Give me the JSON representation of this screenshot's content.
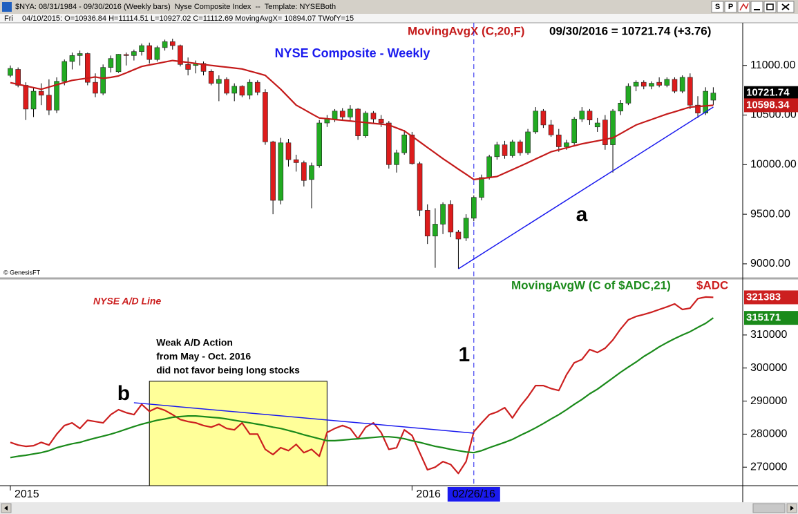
{
  "window": {
    "title": "$NYA: 08/31/1984 - 09/30/2016 (Weekly bars)  Nyse Composite Index  --  Template: NYSEBoth",
    "buttons": [
      "S",
      "P"
    ],
    "day": "Fri",
    "info": "04/10/2015: O=10936.84 H=11114.51 L=10927.02 C=11112.69 MovingAvgX= 10894.07 TWofY=15",
    "credit": "© GenesisFT"
  },
  "chart_data": [
    {
      "type": "candlestick",
      "title": "NYSE Composite - Weekly",
      "quote": "09/30/2016 = 10721.74 (+3.76)",
      "up_color": "#22aa22",
      "down_color": "#dd1c1c",
      "open": [
        10900,
        10960,
        10800,
        10560,
        10740,
        10700,
        10550,
        10840,
        11040,
        11100,
        11120,
        10830,
        10720,
        10980,
        10936.84,
        11110,
        11100,
        11140,
        11200,
        11060,
        11180,
        11240,
        11200,
        11010,
        11000,
        11020,
        10940,
        10820,
        10860,
        10720,
        10790,
        10700,
        10830,
        10730,
        10230,
        9640,
        10220,
        10050,
        10020,
        9850,
        9990,
        10420,
        10460,
        10540,
        10480,
        10560,
        10290,
        10520,
        10460,
        10420,
        10000,
        10120,
        10300,
        10010,
        9540,
        9280,
        9400,
        9600,
        9320,
        9260,
        9460,
        9670,
        9870,
        10080,
        10200,
        10090,
        10230,
        10120,
        10330,
        10540,
        10400,
        10300,
        10180,
        10220,
        10460,
        10540,
        10380,
        10450,
        10200,
        10540,
        10620,
        10790,
        10830,
        10790,
        10830,
        10800,
        10860,
        10740,
        10880,
        10600,
        10520,
        10650
      ],
      "high": [
        11000,
        10980,
        10830,
        10780,
        10820,
        10860,
        10880,
        11060,
        11130,
        11150,
        11130,
        10920,
        11010,
        11100,
        11114.51,
        11130,
        11160,
        11220,
        11230,
        11200,
        11260,
        11270,
        11210,
        11080,
        11050,
        11040,
        10960,
        10900,
        10880,
        10820,
        10800,
        10860,
        10850,
        10760,
        10240,
        10270,
        10260,
        10100,
        10040,
        10020,
        10450,
        10500,
        10560,
        10570,
        10600,
        10570,
        10540,
        10540,
        10500,
        10440,
        10150,
        10350,
        10330,
        10030,
        9600,
        9560,
        9620,
        9640,
        9340,
        9500,
        9690,
        9900,
        10100,
        10230,
        10240,
        10250,
        10250,
        10360,
        10580,
        10560,
        10450,
        10360,
        10250,
        10480,
        10580,
        10560,
        10470,
        10500,
        10560,
        10650,
        10820,
        10850,
        10850,
        10840,
        10880,
        10880,
        10880,
        10900,
        10920,
        10690,
        10780,
        10780
      ],
      "low": [
        10880,
        10780,
        10450,
        10480,
        10600,
        10500,
        10520,
        10800,
        10960,
        11000,
        10800,
        10680,
        10700,
        10930,
        10927.02,
        11000,
        11050,
        11100,
        11020,
        11040,
        11150,
        11160,
        10990,
        10900,
        10920,
        10900,
        10800,
        10640,
        10700,
        10640,
        10680,
        10660,
        10700,
        10200,
        9500,
        9600,
        9980,
        9930,
        9780,
        9560,
        9970,
        10380,
        10430,
        10450,
        10450,
        10250,
        10270,
        10420,
        10380,
        9960,
        9920,
        10100,
        10000,
        9480,
        9200,
        8960,
        9300,
        9270,
        8950,
        9230,
        9430,
        9640,
        9850,
        10050,
        10060,
        10070,
        10090,
        10100,
        10310,
        10370,
        10280,
        10130,
        10150,
        10200,
        10430,
        10400,
        10330,
        10150,
        9920,
        10500,
        10600,
        10740,
        10760,
        10760,
        10780,
        10780,
        10720,
        10720,
        10560,
        10470,
        10500,
        10600
      ],
      "close": [
        10970,
        10800,
        10560,
        10740,
        10700,
        10550,
        10840,
        11040,
        11100,
        11120,
        10830,
        10720,
        10980,
        11070,
        11112.69,
        11100,
        11140,
        11200,
        11060,
        11180,
        11240,
        11200,
        11010,
        10960,
        11020,
        10940,
        10820,
        10860,
        10720,
        10790,
        10700,
        10830,
        10730,
        10230,
        9640,
        10220,
        10050,
        10020,
        9840,
        9990,
        10420,
        10460,
        10540,
        10480,
        10560,
        10290,
        10520,
        10460,
        10420,
        10000,
        10120,
        10300,
        10010,
        9540,
        9280,
        9400,
        9600,
        9320,
        9250,
        9460,
        9670,
        9870,
        10080,
        10200,
        10090,
        10230,
        10120,
        10330,
        10540,
        10400,
        10300,
        10180,
        10220,
        10460,
        10540,
        10450,
        10420,
        10200,
        10540,
        10620,
        10790,
        10830,
        10790,
        10820,
        10800,
        10860,
        10740,
        10880,
        10600,
        10520,
        10740,
        10721.74
      ],
      "series": [
        {
          "name": "MovingAvgX (C,20,F)",
          "color": "#c41a1a",
          "values": [
            10826,
            10810,
            10793,
            10777,
            10760,
            10782,
            10805,
            10828,
            10850,
            10861,
            10872,
            10884,
            10870,
            10880,
            10894.07,
            10925,
            10958,
            10990,
            11005,
            11020,
            11035,
            11050,
            11040,
            11030,
            11020,
            11010,
            11000,
            10991,
            10983,
            10974,
            10965,
            10943,
            10922,
            10900,
            10830,
            10760,
            10680,
            10600,
            10557,
            10513,
            10470,
            10463,
            10455,
            10448,
            10440,
            10432,
            10424,
            10416,
            10408,
            10400,
            10370,
            10340,
            10285,
            10230,
            10173,
            10117,
            10060,
            10008,
            9955,
            9903,
            9850,
            9860,
            9870,
            9880,
            9915,
            9950,
            9985,
            10020,
            10057,
            10093,
            10130,
            10150,
            10170,
            10190,
            10210,
            10225,
            10240,
            10255,
            10270,
            10313,
            10357,
            10400,
            10428,
            10455,
            10483,
            10510,
            10533,
            10557,
            10580,
            10586,
            10592,
            10598.34
          ]
        }
      ],
      "trendline": {
        "label": "a",
        "color": "#1a1aee",
        "points": [
          [
            58,
            8950
          ],
          [
            91,
            10580
          ]
        ]
      },
      "ylim": [
        8860,
        11430
      ],
      "yticks": [
        {
          "value": 9000,
          "label": "9000.00"
        },
        {
          "value": 9500,
          "label": "9500.00"
        },
        {
          "value": 10000,
          "label": "10000.00"
        },
        {
          "value": 10500,
          "label": "10500.00"
        },
        {
          "value": 11000,
          "label": "11000.00"
        }
      ]
    },
    {
      "type": "line",
      "title": "NYSE A/D Line",
      "categories": [
        "2015",
        null,
        null,
        null,
        null,
        null,
        null,
        null,
        null,
        null,
        null,
        null,
        null,
        null,
        null,
        null,
        null,
        null,
        null,
        null,
        null,
        null,
        null,
        null,
        null,
        null,
        null,
        null,
        null,
        null,
        null,
        null,
        null,
        null,
        null,
        null,
        null,
        null,
        null,
        null,
        null,
        null,
        null,
        null,
        null,
        null,
        null,
        null,
        null,
        null,
        null,
        null,
        "2016",
        null,
        null,
        null,
        null,
        null,
        null,
        null,
        "02/26/16",
        null,
        null,
        null,
        null,
        null,
        null,
        null,
        null,
        null,
        null,
        null,
        null,
        null,
        null,
        null,
        null,
        null,
        null,
        null,
        null,
        null,
        null,
        null,
        null,
        null,
        null,
        null,
        null,
        null,
        null,
        null
      ],
      "series": [
        {
          "name": "$ADC",
          "color": "#cc1f1f",
          "values": [
            277500,
            276700,
            276300,
            276500,
            277500,
            276700,
            280000,
            282600,
            283400,
            281700,
            284200,
            283800,
            283400,
            285900,
            287400,
            286500,
            285900,
            289000,
            286900,
            288000,
            287200,
            285900,
            284400,
            283800,
            283400,
            282600,
            282100,
            283000,
            281700,
            281300,
            283400,
            280000,
            280000,
            275400,
            273800,
            275900,
            275000,
            276900,
            274400,
            275400,
            273300,
            280500,
            281700,
            282600,
            281700,
            278600,
            282100,
            283400,
            280500,
            275400,
            275900,
            281300,
            279600,
            274400,
            269200,
            270000,
            271700,
            270800,
            268100,
            271700,
            280700,
            283400,
            285900,
            286700,
            288000,
            284900,
            288400,
            291300,
            294700,
            294700,
            293800,
            293200,
            298000,
            301600,
            302600,
            305600,
            304700,
            306000,
            308500,
            311800,
            314600,
            315600,
            316200,
            316900,
            317700,
            318500,
            319400,
            317700,
            318100,
            321000,
            321500,
            321383
          ]
        },
        {
          "name": "MovingAvgW (C of $ADC,21)",
          "color": "#1a8a1a",
          "values": [
            272900,
            273300,
            273600,
            274000,
            274400,
            275000,
            275900,
            276500,
            277100,
            277500,
            278200,
            278800,
            279400,
            280000,
            280700,
            281500,
            282300,
            283000,
            283600,
            284200,
            284600,
            285100,
            285300,
            285500,
            285500,
            285300,
            285100,
            284900,
            284600,
            284200,
            283800,
            283400,
            283000,
            282600,
            282100,
            281700,
            281100,
            280500,
            279800,
            279200,
            278600,
            278000,
            278000,
            278200,
            278400,
            278600,
            278800,
            279000,
            279200,
            279200,
            279000,
            278600,
            278000,
            277500,
            276900,
            276300,
            275900,
            275400,
            275000,
            274600,
            274400,
            275000,
            275900,
            276700,
            277500,
            278400,
            279600,
            280700,
            281900,
            283200,
            284600,
            285900,
            287400,
            289000,
            290500,
            292200,
            293600,
            295300,
            297000,
            298700,
            300300,
            301800,
            303500,
            304900,
            306400,
            307700,
            308900,
            310000,
            311000,
            312300,
            313500,
            315171
          ]
        }
      ],
      "trendline": {
        "label": "b",
        "color": "#1a1aee",
        "points": [
          [
            16,
            289500
          ],
          [
            60,
            280300
          ]
        ]
      },
      "vline": {
        "category": 60,
        "label": "1",
        "color": "#1a1aee"
      },
      "highlight": {
        "from": 18,
        "to": 41,
        "top": 296000,
        "color": "#ffff99",
        "lines": [
          "Weak A/D Action",
          "from May - Oct. 2016",
          "did not favor being long stocks"
        ]
      },
      "ylim": [
        264400,
        326700
      ],
      "yticks": [
        270000,
        280000,
        290000,
        300000,
        310000
      ]
    }
  ]
}
